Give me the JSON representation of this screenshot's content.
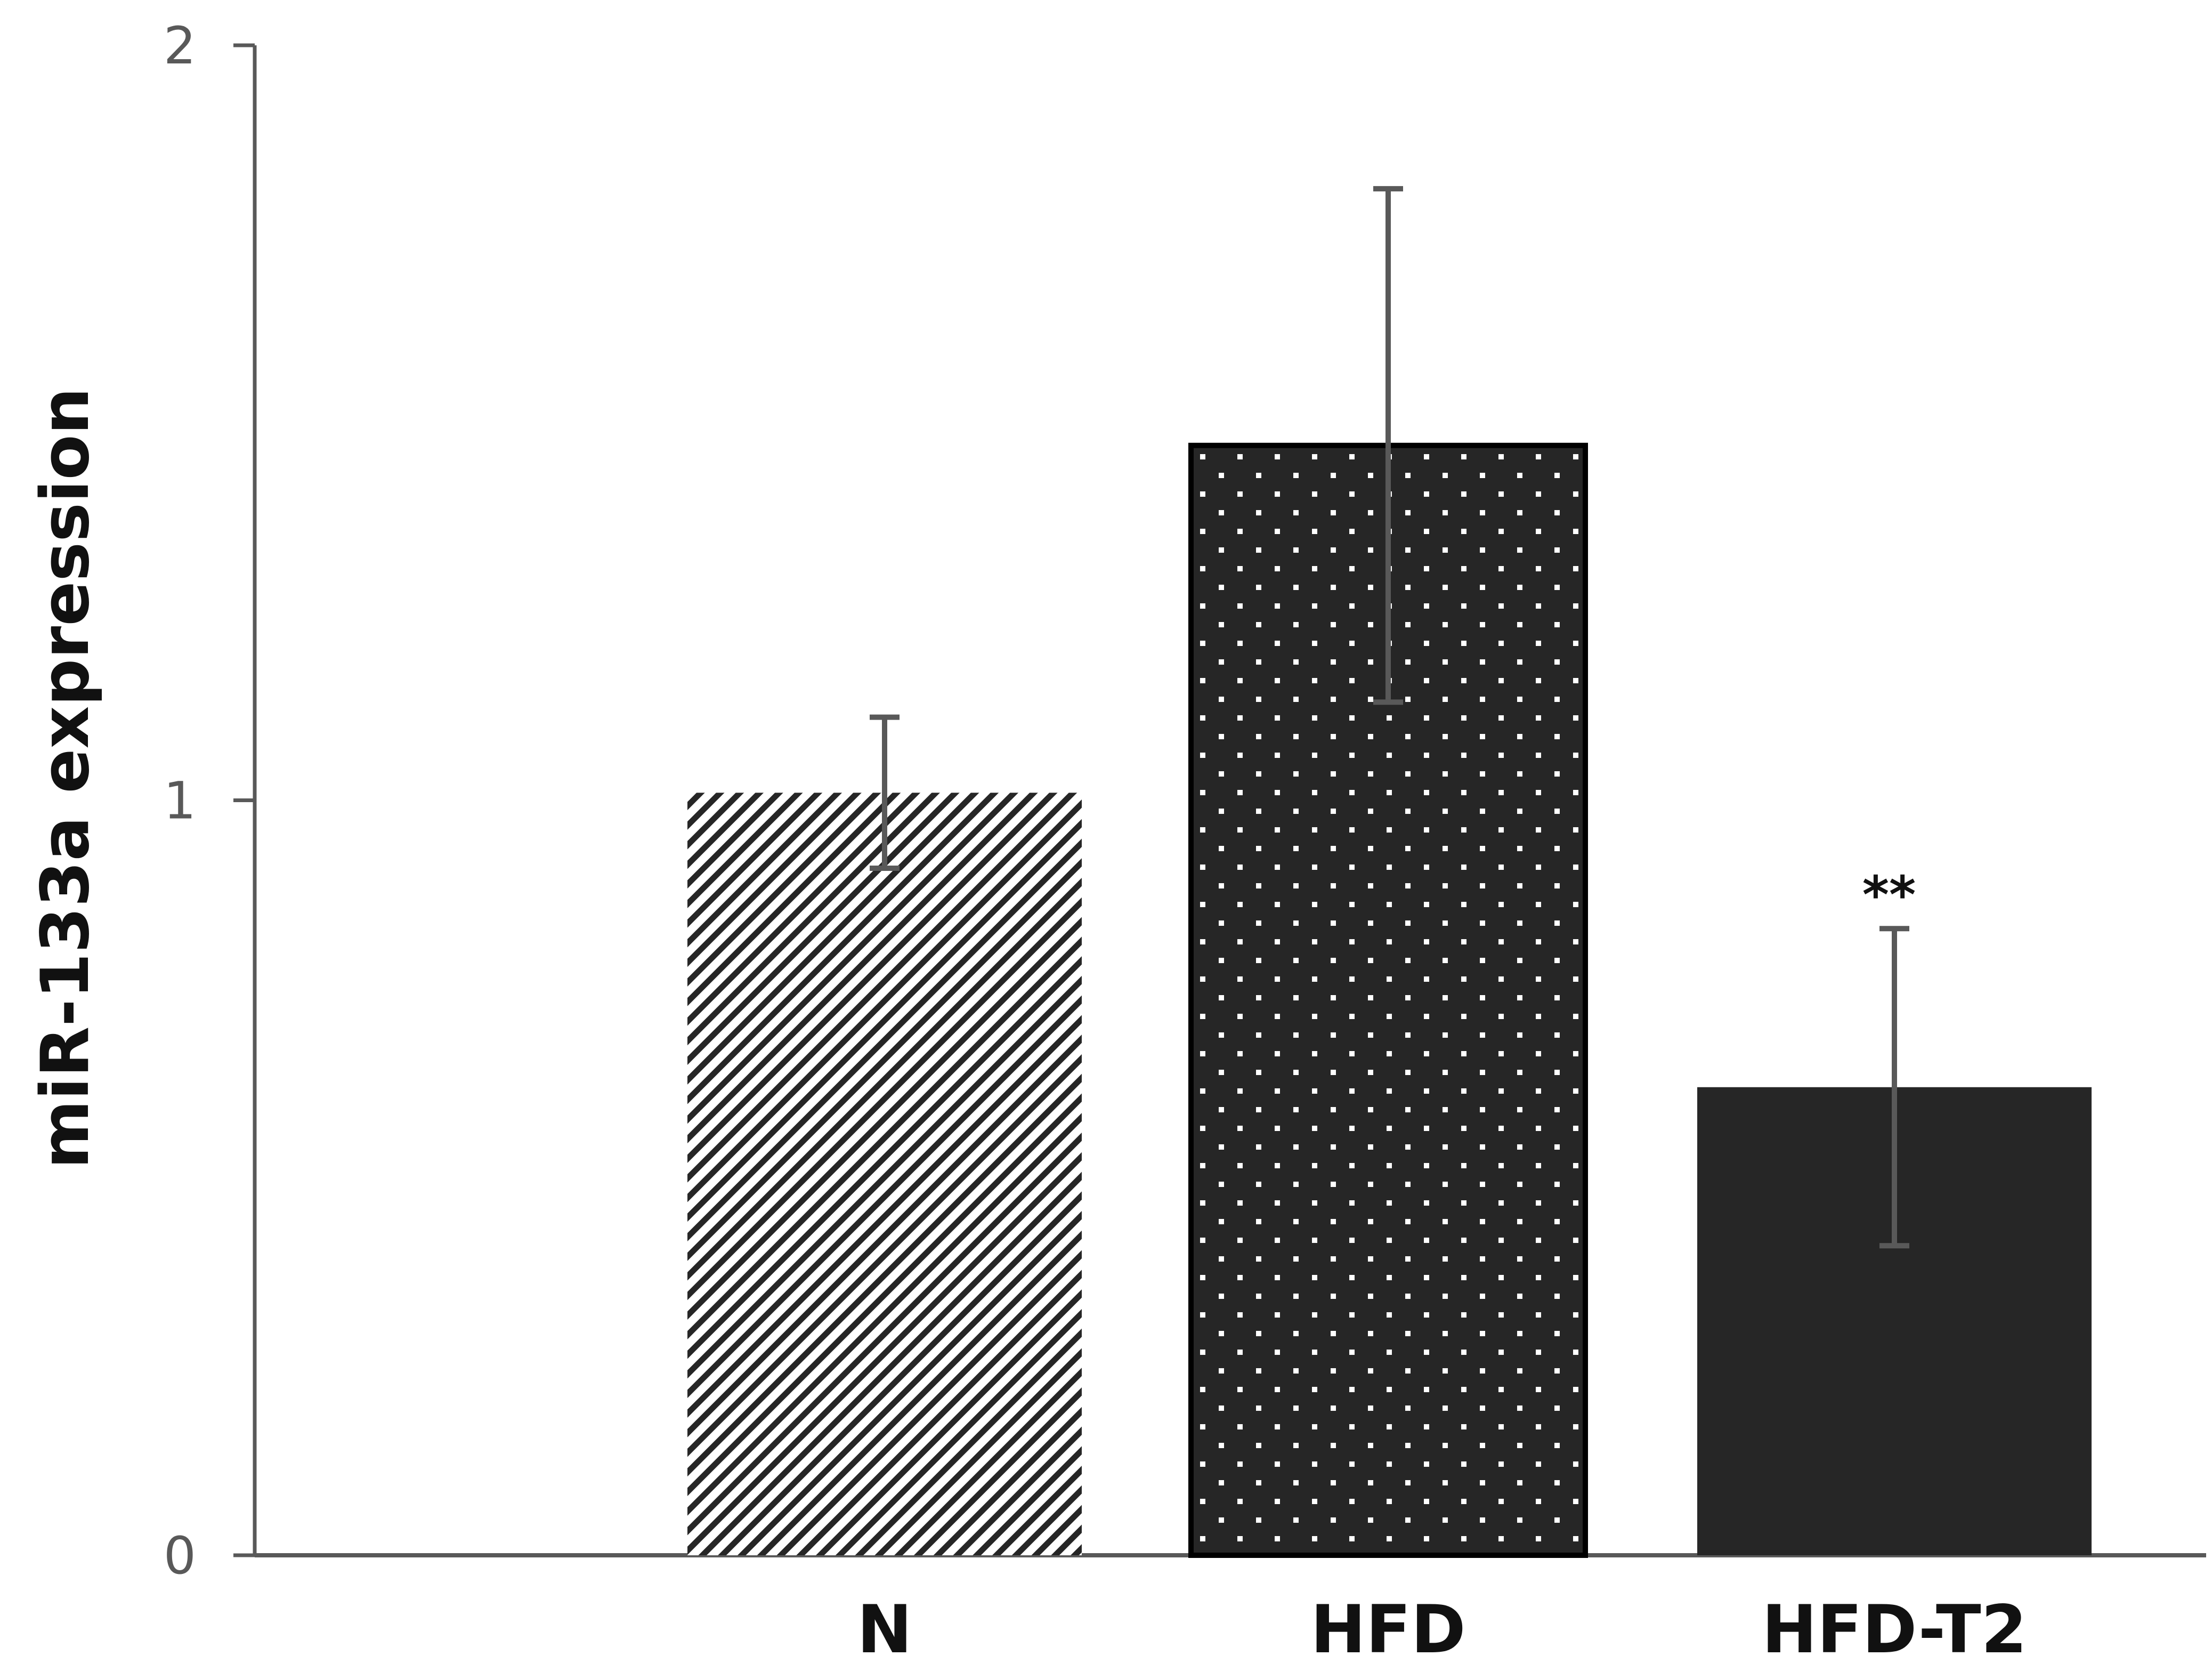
{
  "chart_data": {
    "type": "bar",
    "ylabel": "miR-133a expression",
    "xlabel": "",
    "ylim": [
      0,
      2
    ],
    "yticks": [
      "0",
      "1",
      "2"
    ],
    "grid": false,
    "legend": "none",
    "categories": [
      "N",
      "HFD",
      "HFD-T2"
    ],
    "values": [
      1.01,
      1.47,
      0.62
    ],
    "error": [
      0.1,
      0.34,
      0.21
    ],
    "annotations": [
      "",
      "",
      "**"
    ],
    "patterns": [
      "diagonal-hatch",
      "dotted",
      "solid"
    ],
    "colors": {
      "bar_dark": "#262626",
      "hatch_line": "#262626",
      "dot": "#ffffff",
      "axis": "#595959",
      "error_bar": "#595959"
    }
  }
}
